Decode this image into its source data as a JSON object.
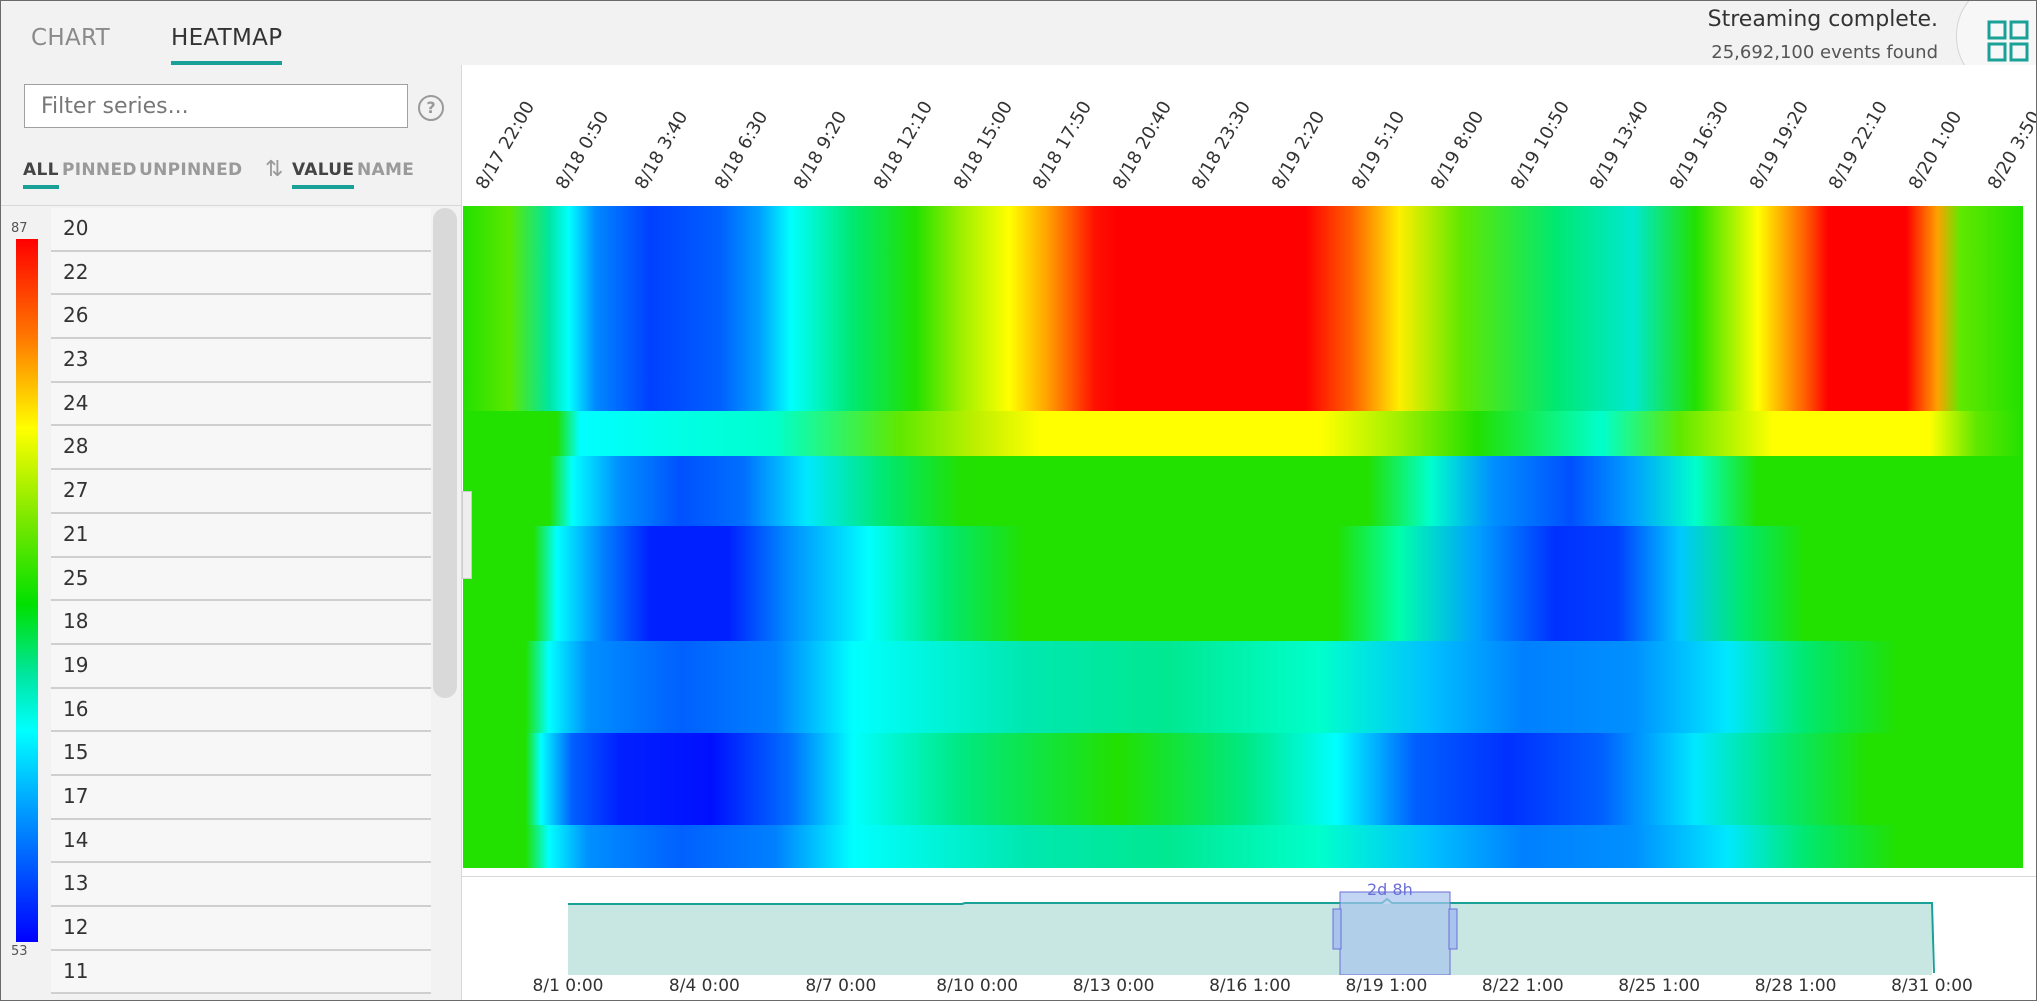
{
  "tabs": [
    {
      "label": "CHART",
      "active": false
    },
    {
      "label": "HEATMAP",
      "active": true
    }
  ],
  "status": {
    "main": "Streaming complete.",
    "sub": "25,692,100 events found"
  },
  "filter": {
    "placeholder": "Filter series...",
    "help": "?"
  },
  "filters": {
    "all": "ALL",
    "pinned": "PINNED",
    "unpinned": "UNPINNED",
    "value": "VALUE",
    "name": "NAME"
  },
  "legend": {
    "max": "87",
    "min": "53"
  },
  "series": [
    "20",
    "22",
    "26",
    "23",
    "24",
    "28",
    "27",
    "21",
    "25",
    "18",
    "19",
    "16",
    "15",
    "17",
    "14",
    "13",
    "12",
    "11"
  ],
  "time_labels": [
    "8/17 22:00",
    "8/18 0:50",
    "8/18 3:40",
    "8/18 6:30",
    "8/18 9:20",
    "8/18 12:10",
    "8/18 15:00",
    "8/18 17:50",
    "8/18 20:40",
    "8/18 23:30",
    "8/19 2:20",
    "8/19 5:10",
    "8/19 8:00",
    "8/19 10:50",
    "8/19 13:40",
    "8/19 16:30",
    "8/19 19:20",
    "8/19 22:10",
    "8/20 1:00",
    "8/20 3:50"
  ],
  "overview": {
    "labels": [
      "8/1 0:00",
      "8/4 0:00",
      "8/7 0:00",
      "8/10 0:00",
      "8/13 0:00",
      "8/16 1:00",
      "8/19 1:00",
      "8/22 1:00",
      "8/25 1:00",
      "8/28 1:00",
      "8/31 0:00"
    ],
    "selection": "2d 8h"
  },
  "colors": {
    "accent": "#1aa197",
    "selection": "#6b6fd6"
  }
}
